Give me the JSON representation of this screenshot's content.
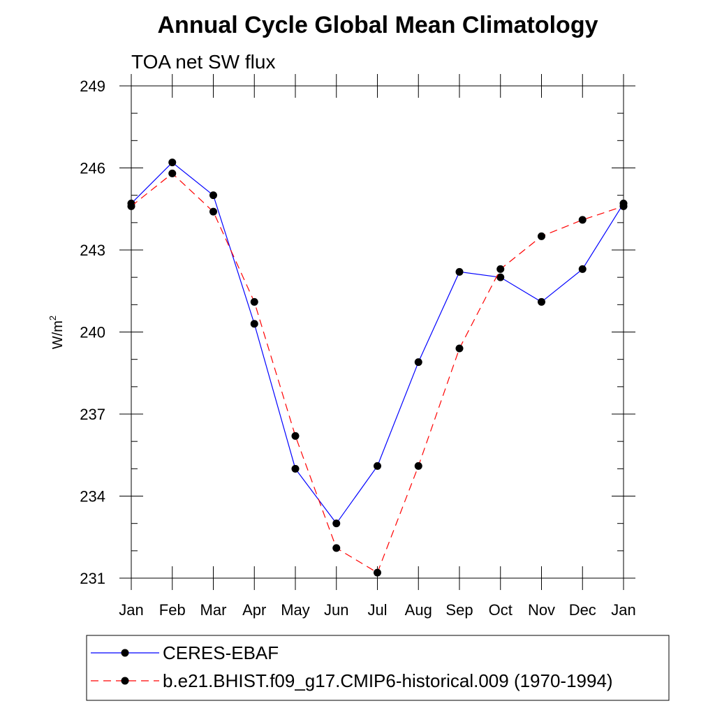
{
  "chart_data": {
    "type": "line",
    "title": "Annual Cycle Global Mean Climatology",
    "subtitle": "TOA net SW flux",
    "ylabel": "W/m",
    "ylabel_sup": "2",
    "xlabel": "",
    "categories": [
      "Jan",
      "Feb",
      "Mar",
      "Apr",
      "May",
      "Jun",
      "Jul",
      "Aug",
      "Sep",
      "Oct",
      "Nov",
      "Dec",
      "Jan"
    ],
    "ylim": [
      231,
      249
    ],
    "yticks": [
      231,
      234,
      237,
      240,
      243,
      246,
      249
    ],
    "yminor_step": 1,
    "grid": false,
    "legend_position": "bottom",
    "series": [
      {
        "name": "CERES-EBAF",
        "color": "#0000ff",
        "dash": "solid",
        "marker": "circle",
        "values": [
          244.7,
          246.2,
          245.0,
          240.3,
          235.0,
          233.0,
          235.1,
          238.9,
          242.2,
          242.0,
          241.1,
          242.3,
          244.7
        ]
      },
      {
        "name": "b.e21.BHIST.f09_g17.CMIP6-historical.009 (1970-1994)",
        "color": "#ff0000",
        "dash": "dashed",
        "marker": "circle",
        "values": [
          244.6,
          245.8,
          244.4,
          241.1,
          236.2,
          232.1,
          231.2,
          235.1,
          239.4,
          242.3,
          243.5,
          244.1,
          244.6
        ]
      }
    ]
  }
}
